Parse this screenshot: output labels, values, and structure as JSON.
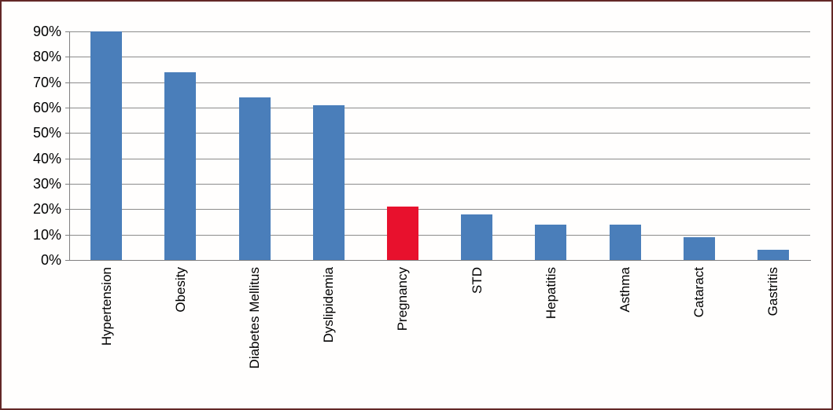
{
  "chart_data": {
    "type": "bar",
    "title": "",
    "xlabel": "",
    "ylabel": "",
    "categories": [
      "Hypertension",
      "Obesity",
      "Diabetes Mellitus",
      "Dyslipidemia",
      "Pregnancy",
      "STD",
      "Hepatitis",
      "Asthma",
      "Cataract",
      "Gastritis"
    ],
    "values": [
      90,
      74,
      64,
      61,
      21,
      18,
      14,
      14,
      9,
      4
    ],
    "bar_colors": [
      "#4A7EBA",
      "#4A7EBA",
      "#4A7EBA",
      "#4A7EBA",
      "#E8112D",
      "#4A7EBA",
      "#4A7EBA",
      "#4A7EBA",
      "#4A7EBA",
      "#4A7EBA"
    ],
    "ylim": [
      0,
      90
    ],
    "ytick_step": 10,
    "ytick_labels": [
      "0%",
      "10%",
      "20%",
      "30%",
      "40%",
      "50%",
      "60%",
      "70%",
      "80%",
      "90%"
    ],
    "grid": true,
    "legend": false
  },
  "style": {
    "frame_border_color": "#632827",
    "background_color": "#FFFFFF",
    "gridline_color": "#8C8C8C",
    "axis_color": "#7F7F7F",
    "default_bar_color": "#4A7EBA",
    "highlight_bar_color": "#E8112D",
    "text_color": "#000000"
  }
}
